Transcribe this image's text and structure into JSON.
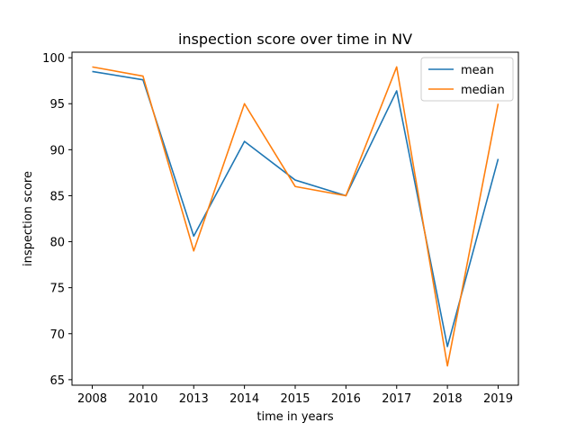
{
  "chart_data": {
    "type": "line",
    "title": "inspection score over time in NV",
    "xlabel": "time in years",
    "ylabel": "inspection score",
    "categories": [
      "2008",
      "2010",
      "2013",
      "2014",
      "2015",
      "2016",
      "2017",
      "2018",
      "2019"
    ],
    "series": [
      {
        "name": "mean",
        "color": "#1f77b4",
        "values": [
          98.5,
          97.6,
          80.6,
          90.9,
          86.7,
          85.0,
          96.4,
          68.6,
          89.0
        ]
      },
      {
        "name": "median",
        "color": "#ff7f0e",
        "values": [
          99.0,
          98.0,
          79.0,
          95.0,
          86.0,
          85.0,
          99.0,
          66.5,
          95.0
        ]
      }
    ],
    "ylim": [
      64.4,
      100.6
    ],
    "yticks": [
      65,
      70,
      75,
      80,
      85,
      90,
      95,
      100
    ],
    "grid": false,
    "legend_position": "top-right"
  }
}
